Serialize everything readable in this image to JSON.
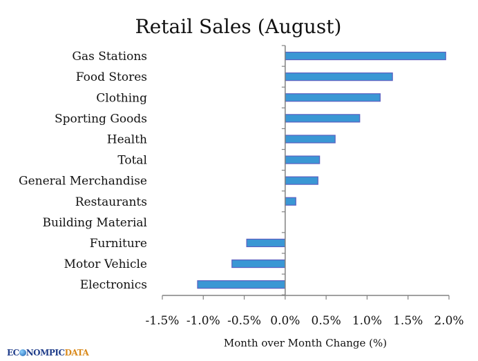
{
  "chart_data": {
    "type": "bar",
    "orientation": "horizontal",
    "title": "Retail Sales (August)",
    "xlabel": "Month over Month Change (%)",
    "ylabel": "",
    "categories": [
      "Gas Stations",
      "Food Stores",
      "Clothing",
      "Sporting Goods",
      "Health",
      "Total",
      "General Merchandise",
      "Restaurants",
      "Building Material",
      "Furniture",
      "Motor Vehicle",
      "Electronics"
    ],
    "values": [
      1.96,
      1.31,
      1.16,
      0.91,
      0.61,
      0.42,
      0.4,
      0.13,
      0.0,
      -0.47,
      -0.65,
      -1.07
    ],
    "xlim": [
      -1.5,
      2.0
    ],
    "xticks": [
      -1.5,
      -1.0,
      -0.5,
      0.0,
      0.5,
      1.0,
      1.5,
      2.0
    ],
    "xtick_labels": [
      "-1.5%",
      "-1.0%",
      "-0.5%",
      "0.0%",
      "0.5%",
      "1.0%",
      "1.5%",
      "2.0%"
    ],
    "grid": false,
    "legend": "none",
    "bar_color": "#3a97d4",
    "bar_edge_color": "#5a5fc0"
  },
  "branding": {
    "logo_part1": "EC",
    "logo_part2": "NOMPIC",
    "logo_part3": "DATA"
  }
}
